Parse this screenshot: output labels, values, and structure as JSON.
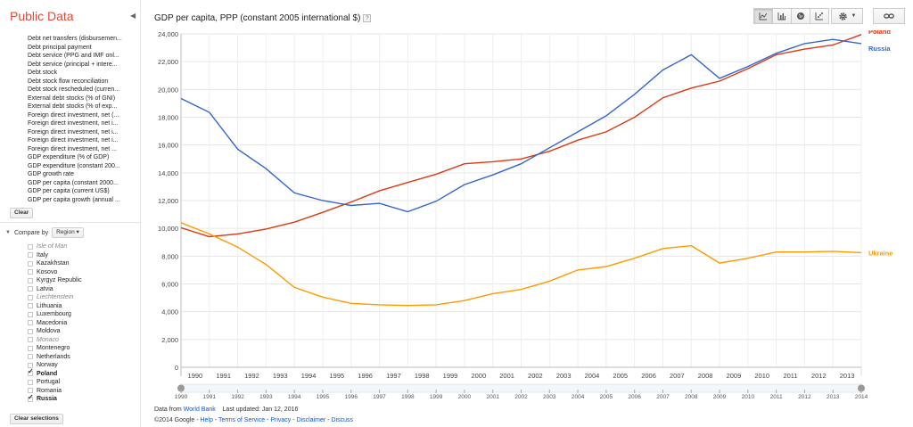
{
  "app": {
    "brand": "Public Data"
  },
  "sidebar": {
    "indicators": [
      "Debt net transfers (disbursemen...",
      "Debt principal payment",
      "Debt service (PPG and IMF onl...",
      "Debt service (principal + intere...",
      "Debt stock",
      "Debt stock flow reconciliation",
      "Debt stock rescheduled (curren...",
      "External debt stocks (% of GNI)",
      "External debt stocks (% of exp...",
      "Foreign direct investment, net (...",
      "Foreign direct investment, net i...",
      "Foreign direct investment, net i...",
      "Foreign direct investment, net i...",
      "Foreign direct investment, net ...",
      "GDP expenditure (% of GDP)",
      "GDP expenditure (constant 200...",
      "GDP growth rate",
      "GDP per capita (constant 2000...",
      "GDP per capita (current US$)",
      "GDP per capita growth (annual ..."
    ],
    "clear_label": "Clear",
    "compare_by_label": "Compare by",
    "region_label": "Region",
    "countries": [
      {
        "name": "Isle of Man",
        "checked": false,
        "disabled": true
      },
      {
        "name": "Italy",
        "checked": false,
        "disabled": false
      },
      {
        "name": "Kazakhstan",
        "checked": false,
        "disabled": false
      },
      {
        "name": "Kosovo",
        "checked": false,
        "disabled": false
      },
      {
        "name": "Kyrgyz Republic",
        "checked": false,
        "disabled": false
      },
      {
        "name": "Latvia",
        "checked": false,
        "disabled": false
      },
      {
        "name": "Liechtenstein",
        "checked": false,
        "disabled": true
      },
      {
        "name": "Lithuania",
        "checked": false,
        "disabled": false
      },
      {
        "name": "Luxembourg",
        "checked": false,
        "disabled": false
      },
      {
        "name": "Macedonia",
        "checked": false,
        "disabled": false
      },
      {
        "name": "Moldova",
        "checked": false,
        "disabled": false
      },
      {
        "name": "Monaco",
        "checked": false,
        "disabled": true
      },
      {
        "name": "Montenegro",
        "checked": false,
        "disabled": false
      },
      {
        "name": "Netherlands",
        "checked": false,
        "disabled": false
      },
      {
        "name": "Norway",
        "checked": false,
        "disabled": false
      },
      {
        "name": "Poland",
        "checked": true,
        "disabled": false
      },
      {
        "name": "Portugal",
        "checked": false,
        "disabled": false
      },
      {
        "name": "Romania",
        "checked": false,
        "disabled": false
      },
      {
        "name": "Russia",
        "checked": true,
        "disabled": false
      }
    ],
    "clear_selections_label": "Clear selections"
  },
  "header": {
    "title": "GDP per capita, PPP (constant 2005 international $)",
    "help_glyph": "?",
    "toolbar_icons": [
      "line-chart-icon",
      "bar-chart-icon",
      "map-icon",
      "scatter-chart-icon"
    ],
    "active_view": "line-chart-icon"
  },
  "footer": {
    "data_from": "Data from",
    "source_link": "World Bank",
    "last_updated": "Last updated: Jan 12, 2016",
    "copyright": "©2014 Google",
    "links": [
      "Help",
      "Terms of Service",
      "Privacy",
      "Disclaimer",
      "Discuss"
    ],
    "sep": " - "
  },
  "colors": {
    "poland": "#dc3912",
    "russia": "#3366cc",
    "ukraine": "#ff9900",
    "brand": "#dd4b39"
  },
  "chart_data": {
    "type": "line",
    "title": "GDP per capita, PPP (constant 2005 international $)",
    "xlabel": "",
    "ylabel": "",
    "x": [
      1990,
      1991,
      1992,
      1993,
      1994,
      1995,
      1996,
      1997,
      1998,
      1999,
      2000,
      2001,
      2002,
      2003,
      2004,
      2005,
      2006,
      2007,
      2008,
      2009,
      2010,
      2011,
      2012,
      2013,
      2014
    ],
    "ylim": [
      0,
      24000
    ],
    "yticks": [
      0,
      2000,
      4000,
      6000,
      8000,
      10000,
      12000,
      14000,
      16000,
      18000,
      20000,
      22000,
      24000
    ],
    "ytick_labels": [
      "0",
      "2,000",
      "4,000",
      "6,000",
      "8,000",
      "10,000",
      "12,000",
      "14,000",
      "16,000",
      "18,000",
      "20,000",
      "22,000",
      "24,000"
    ],
    "xtick_labels": [
      "1990",
      "1991",
      "1992",
      "1993",
      "1994",
      "1995",
      "1996",
      "1997",
      "1998",
      "1999",
      "2000",
      "2001",
      "2002",
      "2003",
      "2004",
      "2005",
      "2006",
      "2007",
      "2008",
      "2009",
      "2010",
      "2011",
      "2012",
      "2013"
    ],
    "slider_labels": [
      "1990",
      "1991",
      "1992",
      "1993",
      "1994",
      "1995",
      "1996",
      "1997",
      "1998",
      "1999",
      "2000",
      "2001",
      "2002",
      "2003",
      "2004",
      "2005",
      "2006",
      "2007",
      "2008",
      "2009",
      "2010",
      "2011",
      "2012",
      "2013",
      "2014"
    ],
    "series": [
      {
        "name": "Poland",
        "color": "#dc3912",
        "values": [
          10050,
          9400,
          9600,
          9950,
          10450,
          11150,
          11900,
          12700,
          13300,
          13900,
          14650,
          14800,
          15000,
          15550,
          16350,
          16950,
          18000,
          19400,
          20100,
          20600,
          21500,
          22500,
          22900,
          23200,
          23950
        ]
      },
      {
        "name": "Russia",
        "color": "#3366cc",
        "values": [
          19350,
          18350,
          15700,
          14300,
          12550,
          12000,
          11650,
          11800,
          11200,
          11950,
          13150,
          13850,
          14650,
          15800,
          16950,
          18100,
          19650,
          21400,
          22500,
          20800,
          21650,
          22600,
          23300,
          23600,
          23300
        ]
      },
      {
        "name": "Ukraine",
        "color": "#ff9900",
        "values": [
          10400,
          9600,
          8650,
          7400,
          5750,
          5050,
          4600,
          4500,
          4450,
          4500,
          4800,
          5300,
          5600,
          6200,
          7000,
          7250,
          7850,
          8550,
          8750,
          7500,
          7850,
          8300,
          8300,
          8350,
          8250
        ]
      }
    ],
    "legend": "right-end labels",
    "grid": true
  }
}
